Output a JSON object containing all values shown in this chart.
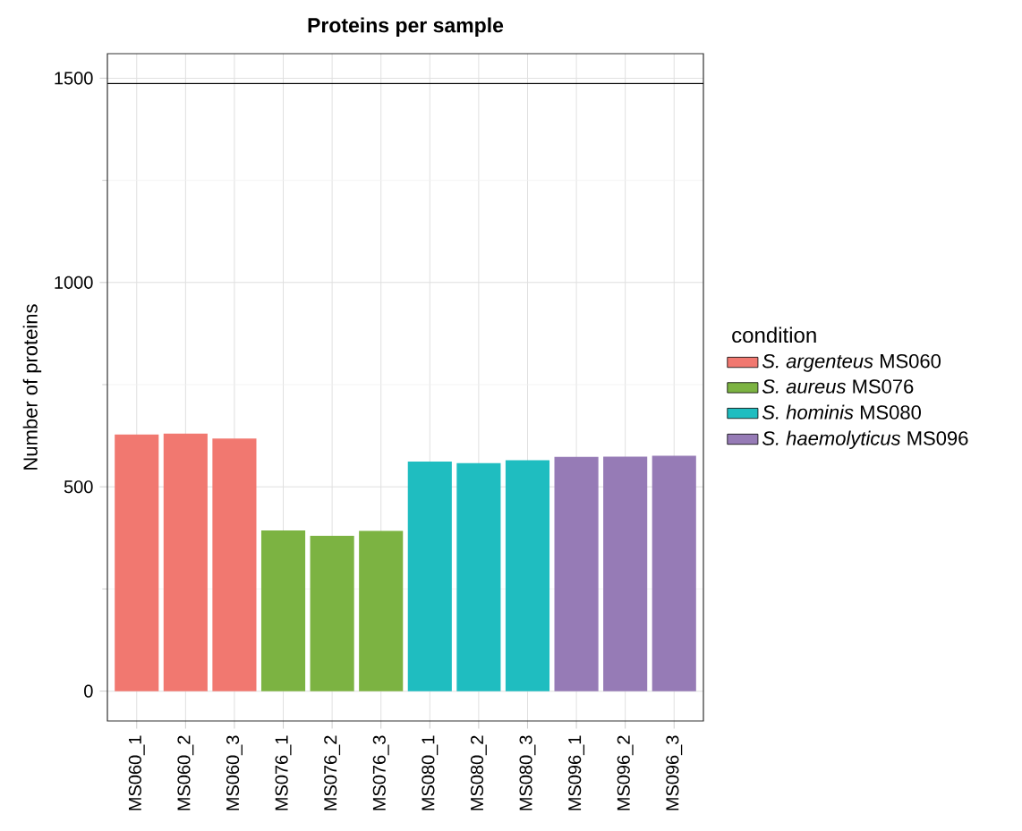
{
  "chart_data": {
    "type": "bar",
    "title": "Proteins per sample",
    "ylabel": "Number of proteins",
    "legend_title": "condition",
    "categories": [
      "MS060_1",
      "MS060_2",
      "MS060_3",
      "MS076_1",
      "MS076_2",
      "MS076_3",
      "MS080_1",
      "MS080_2",
      "MS080_3",
      "MS096_1",
      "MS096_2",
      "MS096_3"
    ],
    "series": [
      {
        "name": "*S. argenteus* MS060",
        "color": "#f17870",
        "values": [
          628,
          630,
          618,
          null,
          null,
          null,
          null,
          null,
          null,
          null,
          null,
          null
        ]
      },
      {
        "name": "*S. aureus* MS076",
        "color": "#7cb342",
        "values": [
          null,
          null,
          null,
          393,
          380,
          392,
          null,
          null,
          null,
          null,
          null,
          null
        ]
      },
      {
        "name": "*S. hominis* MS080",
        "color": "#1fbdc0",
        "values": [
          null,
          null,
          null,
          null,
          null,
          null,
          562,
          558,
          565,
          null,
          null,
          null
        ]
      },
      {
        "name": "*S. haemolyticus* MS096",
        "color": "#967bb6",
        "values": [
          null,
          null,
          null,
          null,
          null,
          null,
          null,
          null,
          null,
          573,
          574,
          576
        ]
      }
    ],
    "ylim": [
      -73,
      1560
    ],
    "yticks": [
      0,
      500,
      1000,
      1500
    ],
    "grid": true,
    "legend": "right",
    "ref_lines": [
      {
        "axis": "y",
        "value": 1487,
        "color": "#000000"
      }
    ]
  }
}
